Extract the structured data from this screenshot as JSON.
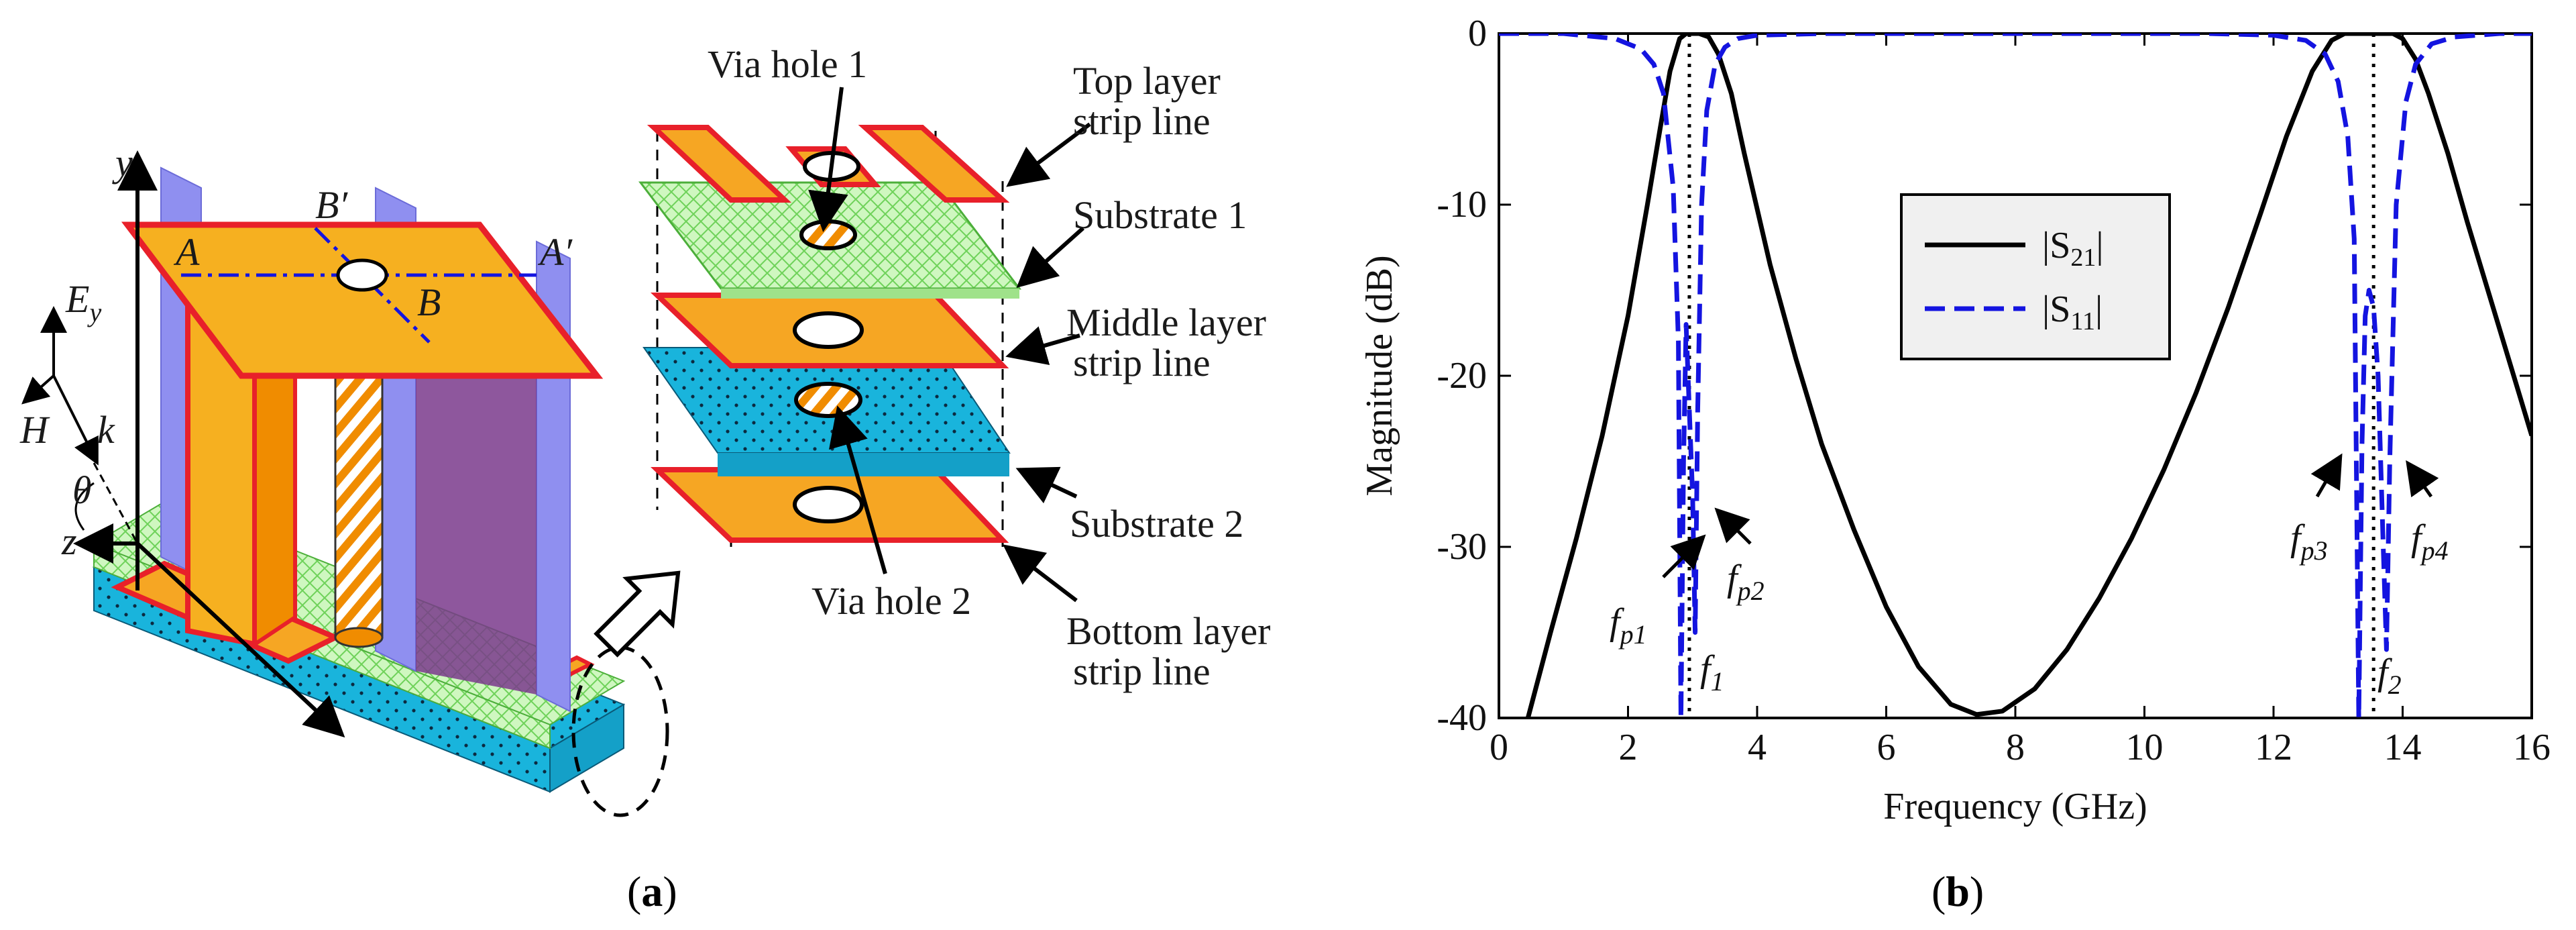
{
  "colors": {
    "orange": "#F6A623",
    "orange_dark": "#F08C00",
    "red_edge": "#E8202A",
    "green": "#B6F0A0",
    "cyan": "#19B4DC",
    "lavender": "#8F8FF0",
    "purple": "#7A3A8C",
    "s21_line": "#000000",
    "s11_line": "#1414E0",
    "marker_line": "#000000"
  },
  "panel_a": {
    "caption_open": "(",
    "caption_letter": "a",
    "caption_close": ")",
    "axis_y": "y",
    "axis_z": "z",
    "field_ey_e": "E",
    "field_ey_sub": "y",
    "field_h": "H",
    "field_k": "k",
    "angle": "θ",
    "point_a": "A",
    "point_a_prime": "A′",
    "point_b": "B",
    "point_b_prime": "B′",
    "labels": {
      "via_hole_1": "Via hole 1",
      "via_hole_2": "Via hole 2",
      "top_layer_1": "Top layer",
      "top_layer_2": "strip line",
      "substrate_1": "Substrate 1",
      "middle_layer_1": "Middle layer",
      "middle_layer_2": "strip line",
      "substrate_2": "Substrate 2",
      "bottom_layer_1": "Bottom layer",
      "bottom_layer_2": "strip line"
    },
    "icons": [
      "zoom-arrow-icon",
      "pointer-arrow-icon"
    ]
  },
  "panel_b": {
    "caption_open": "(",
    "caption_letter": "b",
    "caption_close": ")",
    "legend": {
      "s21_pre": "|S",
      "s21_sub": "21",
      "s21_post": "|",
      "s11_pre": "|S",
      "s11_sub": "11",
      "s11_post": "|"
    },
    "annotations": {
      "fp1_f": "f",
      "fp1_sub": "p1",
      "fp2_f": "f",
      "fp2_sub": "p2",
      "fp3_f": "f",
      "fp3_sub": "p3",
      "fp4_f": "f",
      "fp4_sub": "p4",
      "f1_f": "f",
      "f1_sub": "1",
      "f2_f": "f",
      "f2_sub": "2"
    }
  },
  "chart_data": {
    "type": "line",
    "title": "",
    "xlabel": "Frequency (GHz)",
    "ylabel": "Magnitude (dB)",
    "xlim": [
      0,
      16
    ],
    "ylim": [
      -40,
      0
    ],
    "xticks": [
      0,
      2,
      4,
      6,
      8,
      10,
      12,
      14,
      16
    ],
    "yticks": [
      0,
      -10,
      -20,
      -30,
      -40
    ],
    "grid": false,
    "legend_position": "center",
    "markers_x": [
      2.95,
      13.55
    ],
    "series": [
      {
        "name": "|S21|",
        "style": "solid",
        "x": [
          0.45,
          0.8,
          1.2,
          1.6,
          2.0,
          2.3,
          2.5,
          2.65,
          2.8,
          2.9,
          3.0,
          3.1,
          3.25,
          3.4,
          3.6,
          3.8,
          4.2,
          4.6,
          5.0,
          5.5,
          6.0,
          6.5,
          7.0,
          7.4,
          7.8,
          8.3,
          8.8,
          9.3,
          9.8,
          10.3,
          10.8,
          11.3,
          11.8,
          12.2,
          12.6,
          12.9,
          13.1,
          13.25,
          13.4,
          13.55,
          13.7,
          13.85,
          14.0,
          14.2,
          14.4,
          14.7,
          15.0,
          15.4,
          15.8,
          16.0
        ],
        "y": [
          -40,
          -35,
          -29.5,
          -23.5,
          -16.5,
          -10,
          -5.5,
          -2.2,
          -0.3,
          0,
          0,
          0,
          -0.2,
          -1.2,
          -3.5,
          -7,
          -13.5,
          -19,
          -24,
          -29,
          -33.5,
          -37,
          -39.2,
          -39.8,
          -39.6,
          -38.3,
          -36,
          -33,
          -29.5,
          -25.5,
          -21,
          -16,
          -10.5,
          -6,
          -2.2,
          -0.4,
          0,
          0,
          0,
          0,
          0,
          0,
          -0.3,
          -1.5,
          -3.5,
          -7,
          -11,
          -16,
          -21,
          -23.5
        ]
      },
      {
        "name": "|S11|",
        "style": "dashed",
        "x": [
          0,
          1.0,
          1.8,
          2.2,
          2.4,
          2.55,
          2.7,
          2.78,
          2.82,
          2.86,
          2.9,
          2.95,
          3.0,
          3.04,
          3.08,
          3.14,
          3.22,
          3.35,
          3.5,
          3.7,
          4.0,
          5.0,
          8.0,
          11.0,
          12.0,
          12.5,
          12.8,
          13.0,
          13.15,
          13.25,
          13.32,
          13.37,
          13.42,
          13.48,
          13.55,
          13.62,
          13.7,
          13.75,
          13.8,
          13.9,
          14.05,
          14.2,
          14.45,
          14.8,
          15.5,
          16.0
        ],
        "y": [
          0,
          0,
          -0.3,
          -0.9,
          -1.8,
          -3.5,
          -9,
          -18,
          -40,
          -25,
          -17,
          -22,
          -27,
          -35,
          -22,
          -10,
          -4.5,
          -1.8,
          -0.8,
          -0.3,
          -0.1,
          0,
          0,
          0,
          -0.1,
          -0.4,
          -1.2,
          -2.8,
          -6,
          -12,
          -40,
          -24,
          -16.5,
          -15,
          -16,
          -20,
          -30,
          -36,
          -25,
          -10,
          -4,
          -1.8,
          -0.6,
          -0.2,
          0,
          0
        ]
      }
    ]
  }
}
